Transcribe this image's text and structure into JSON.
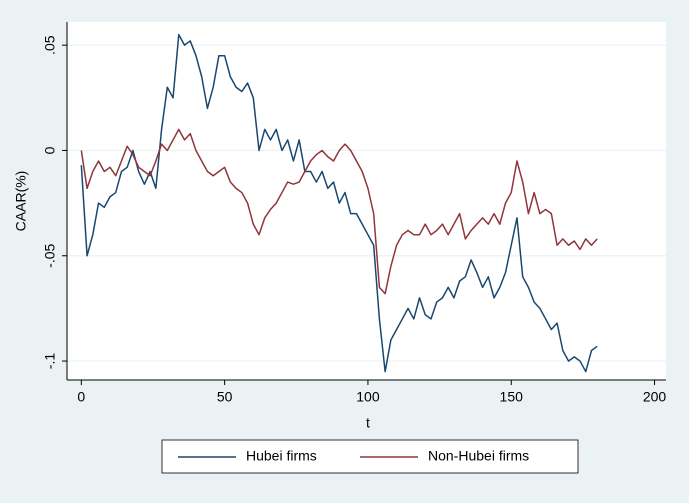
{
  "chart_data": {
    "type": "line",
    "y_label": "CAAR(%)",
    "x_label": "t",
    "x": [
      0,
      2,
      4,
      6,
      8,
      10,
      12,
      14,
      16,
      18,
      20,
      22,
      24,
      26,
      28,
      30,
      32,
      34,
      36,
      38,
      40,
      42,
      44,
      46,
      48,
      50,
      52,
      54,
      56,
      58,
      60,
      62,
      64,
      66,
      68,
      70,
      72,
      74,
      76,
      78,
      80,
      82,
      84,
      86,
      88,
      90,
      92,
      94,
      96,
      98,
      100,
      102,
      104,
      106,
      108,
      110,
      112,
      114,
      116,
      118,
      120,
      122,
      124,
      126,
      128,
      130,
      132,
      134,
      136,
      138,
      140,
      142,
      144,
      146,
      148,
      150,
      152,
      154,
      156,
      158,
      160,
      162,
      164,
      166,
      168,
      170,
      172,
      174,
      176,
      178,
      180
    ],
    "series": [
      {
        "name": "Hubei firms",
        "color": "#1a476f",
        "values": [
          -0.007,
          -0.05,
          -0.04,
          -0.025,
          -0.027,
          -0.022,
          -0.02,
          -0.01,
          -0.008,
          0,
          -0.01,
          -0.016,
          -0.01,
          -0.018,
          0.01,
          0.03,
          0.025,
          0.055,
          0.05,
          0.052,
          0.045,
          0.035,
          0.02,
          0.03,
          0.045,
          0.045,
          0.035,
          0.03,
          0.028,
          0.032,
          0.025,
          0,
          0.01,
          0.005,
          0.01,
          0,
          0.005,
          -0.005,
          0.005,
          -0.01,
          -0.01,
          -0.015,
          -0.01,
          -0.018,
          -0.015,
          -0.025,
          -0.02,
          -0.03,
          -0.03,
          -0.035,
          -0.04,
          -0.045,
          -0.08,
          -0.105,
          -0.09,
          -0.085,
          -0.08,
          -0.075,
          -0.08,
          -0.07,
          -0.078,
          -0.08,
          -0.072,
          -0.07,
          -0.065,
          -0.07,
          -0.062,
          -0.06,
          -0.052,
          -0.058,
          -0.065,
          -0.06,
          -0.07,
          -0.065,
          -0.058,
          -0.045,
          -0.032,
          -0.06,
          -0.065,
          -0.072,
          -0.075,
          -0.08,
          -0.085,
          -0.082,
          -0.095,
          -0.1,
          -0.098,
          -0.1,
          -0.105,
          -0.095,
          -0.093
        ]
      },
      {
        "name": "Non-Hubei firms",
        "color": "#90353b",
        "values": [
          0,
          -0.018,
          -0.01,
          -0.005,
          -0.01,
          -0.008,
          -0.012,
          -0.005,
          0.002,
          -0.002,
          -0.008,
          -0.01,
          -0.012,
          -0.005,
          0.003,
          0,
          0.005,
          0.01,
          0.005,
          0.008,
          0,
          -0.005,
          -0.01,
          -0.012,
          -0.01,
          -0.008,
          -0.015,
          -0.018,
          -0.02,
          -0.025,
          -0.035,
          -0.04,
          -0.032,
          -0.028,
          -0.025,
          -0.02,
          -0.015,
          -0.016,
          -0.015,
          -0.01,
          -0.005,
          -0.002,
          0,
          -0.003,
          -0.005,
          0,
          0.003,
          0,
          -0.005,
          -0.01,
          -0.018,
          -0.03,
          -0.065,
          -0.068,
          -0.055,
          -0.045,
          -0.04,
          -0.038,
          -0.04,
          -0.04,
          -0.035,
          -0.04,
          -0.038,
          -0.035,
          -0.04,
          -0.035,
          -0.03,
          -0.042,
          -0.038,
          -0.035,
          -0.032,
          -0.035,
          -0.03,
          -0.035,
          -0.025,
          -0.02,
          -0.005,
          -0.015,
          -0.03,
          -0.02,
          -0.03,
          -0.028,
          -0.03,
          -0.045,
          -0.042,
          -0.045,
          -0.043,
          -0.047,
          -0.042,
          -0.045,
          -0.042
        ]
      }
    ],
    "xlim": [
      -5,
      204
    ],
    "ylim": [
      -0.109,
      0.061
    ],
    "xticks": [
      0,
      50,
      100,
      150,
      200
    ],
    "yticks": [
      {
        "value": -0.1,
        "label": "-.1"
      },
      {
        "value": -0.05,
        "label": "-.05"
      },
      0,
      {
        "value": 0.05,
        "label": ".05"
      }
    ],
    "grid": true
  }
}
